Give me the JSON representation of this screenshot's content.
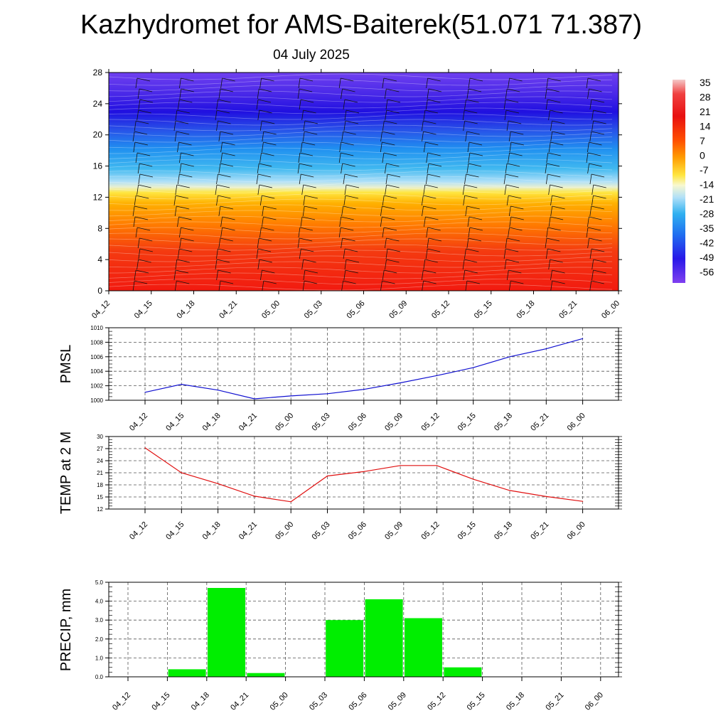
{
  "title": "Kazhydromet for AMS-Baiterek(51.071 71.387)",
  "subtitle": "04 July 2025",
  "chart_data": [
    {
      "type": "heatmap",
      "name": "cross-section",
      "categories": [
        "04_12",
        "04_15",
        "04_18",
        "04_21",
        "05_00",
        "05_03",
        "05_06",
        "05_09",
        "05_12",
        "05_15",
        "05_18",
        "05_21",
        "06_00"
      ],
      "y_ticks": [
        "0",
        "4",
        "8",
        "12",
        "16",
        "20",
        "24",
        "28"
      ],
      "ylim": [
        0,
        28
      ],
      "colorbar": {
        "labels": [
          "35",
          "28",
          "21",
          "14",
          "7",
          "0",
          "-7",
          "-14",
          "-21",
          "-28",
          "-35",
          "-42",
          "-49",
          "-56"
        ]
      },
      "colors": {
        "hot": "#f01010",
        "warm": "#ff8a00",
        "yellow": "#ffe640",
        "cold": "#20a8f0",
        "deep": "#3020f0"
      }
    },
    {
      "type": "line",
      "ylabel": "PMSL",
      "categories": [
        "04_12",
        "04_15",
        "04_18",
        "04_21",
        "05_00",
        "05_03",
        "05_06",
        "05_09",
        "05_12",
        "05_15",
        "05_18",
        "05_21",
        "06_00"
      ],
      "values": [
        1001.1,
        1002.2,
        1001.4,
        1000.2,
        1000.6,
        1000.9,
        1001.5,
        1002.4,
        1003.4,
        1004.5,
        1006.0,
        1007.1,
        1008.5
      ],
      "ylim": [
        1000,
        1010
      ],
      "y_ticks": [
        "1000",
        "1002",
        "1004",
        "1006",
        "1008",
        "1010"
      ],
      "color": "#1010d0"
    },
    {
      "type": "line",
      "ylabel": "TEMP at 2 M",
      "categories": [
        "04_12",
        "04_15",
        "04_18",
        "04_21",
        "05_00",
        "05_03",
        "05_06",
        "05_09",
        "05_12",
        "05_15",
        "05_18",
        "05_21",
        "06_00"
      ],
      "values": [
        27.2,
        21.0,
        18.3,
        15.2,
        13.8,
        20.2,
        21.3,
        22.8,
        22.8,
        19.4,
        16.6,
        15.1,
        13.9
      ],
      "ylim": [
        12,
        30
      ],
      "y_ticks": [
        "12",
        "15",
        "18",
        "21",
        "24",
        "27",
        "30"
      ],
      "color": "#e01010"
    },
    {
      "type": "bar",
      "ylabel": "PRECIP, mm",
      "categories": [
        "04_12",
        "04_15",
        "04_18",
        "04_21",
        "05_00",
        "05_03",
        "05_06",
        "05_09",
        "05_12",
        "05_15",
        "05_18",
        "05_21",
        "06_00"
      ],
      "values": [
        0.0,
        0.4,
        4.7,
        0.2,
        0.0,
        3.0,
        4.1,
        3.1,
        0.5,
        0.0,
        0.0,
        0.0,
        0.0
      ],
      "ylim": [
        0,
        5
      ],
      "y_ticks": [
        "0.0",
        "1.0",
        "2.0",
        "3.0",
        "4.0",
        "5.0"
      ],
      "color": "#00ee00"
    }
  ]
}
